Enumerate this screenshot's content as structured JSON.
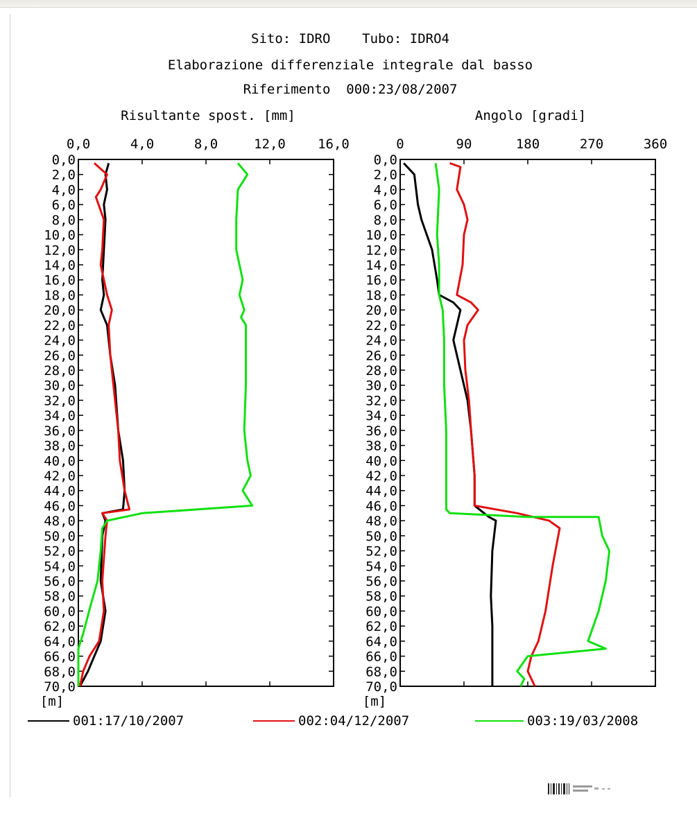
{
  "title_lines": [
    "Sito: IDRO    Tubo: IDRO4",
    "Elaborazione differenziale integrale dal basso",
    "Riferimento  000:23/08/2007"
  ],
  "depth_unit": "[m]",
  "legend": [
    {
      "label": "001:17/10/2007",
      "color": "#000000"
    },
    {
      "label": "002:04/12/2007",
      "color": "#e01010"
    },
    {
      "label": "003:19/03/2008",
      "color": "#10e010"
    }
  ],
  "chart_data": [
    {
      "type": "line",
      "title": "Risultante spost. [mm]",
      "xlabel": "Risultante spost. [mm]",
      "ylabel": "[m]",
      "xlim": [
        0,
        16
      ],
      "ylim": [
        70,
        0
      ],
      "x_ticks": [
        "0,0",
        "4,0",
        "8,0",
        "12,0",
        "16,0"
      ],
      "y_ticks": [
        "0,0",
        "2,0",
        "4,0",
        "6,0",
        "8,0",
        "10,0",
        "12,0",
        "14,0",
        "16,0",
        "18,0",
        "20,0",
        "22,0",
        "24,0",
        "26,0",
        "28,0",
        "30,0",
        "32,0",
        "34,0",
        "36,0",
        "38,0",
        "40,0",
        "42,0",
        "44,0",
        "46,0",
        "48,0",
        "50,0",
        "52,0",
        "54,0",
        "56,0",
        "58,0",
        "60,0",
        "62,0",
        "64,0",
        "66,0",
        "68,0",
        "70,0"
      ],
      "grid": false,
      "series": [
        {
          "name": "001:17/10/2007",
          "color": "#000000",
          "points": [
            [
              1.9,
              0.5
            ],
            [
              1.7,
              2
            ],
            [
              1.8,
              4
            ],
            [
              1.6,
              6
            ],
            [
              1.7,
              8
            ],
            [
              1.6,
              12
            ],
            [
              1.5,
              16
            ],
            [
              1.6,
              18
            ],
            [
              1.4,
              20
            ],
            [
              1.8,
              22
            ],
            [
              2.0,
              26
            ],
            [
              2.3,
              30
            ],
            [
              2.5,
              36
            ],
            [
              2.8,
              40
            ],
            [
              2.9,
              44
            ],
            [
              2.8,
              46.5
            ],
            [
              1.5,
              47
            ],
            [
              1.7,
              48
            ],
            [
              1.5,
              50
            ],
            [
              1.4,
              56
            ],
            [
              1.7,
              60
            ],
            [
              1.4,
              64
            ],
            [
              1.0,
              66
            ],
            [
              0.6,
              68
            ],
            [
              0.1,
              70
            ]
          ]
        },
        {
          "name": "002:04/12/2007",
          "color": "#e01010",
          "points": [
            [
              1.0,
              0.5
            ],
            [
              1.8,
              2
            ],
            [
              1.4,
              4
            ],
            [
              1.1,
              5
            ],
            [
              1.6,
              8
            ],
            [
              1.5,
              12
            ],
            [
              1.4,
              14
            ],
            [
              1.6,
              16
            ],
            [
              1.8,
              18
            ],
            [
              2.1,
              20
            ],
            [
              1.9,
              22
            ],
            [
              2.0,
              26
            ],
            [
              2.2,
              30
            ],
            [
              2.5,
              36
            ],
            [
              2.6,
              40
            ],
            [
              2.9,
              44
            ],
            [
              3.2,
              46.5
            ],
            [
              1.5,
              47
            ],
            [
              1.8,
              48
            ],
            [
              1.7,
              50
            ],
            [
              1.5,
              56
            ],
            [
              1.6,
              60
            ],
            [
              1.3,
              64
            ],
            [
              0.7,
              66
            ],
            [
              0.3,
              68
            ],
            [
              0.1,
              70
            ]
          ]
        },
        {
          "name": "003:19/03/2008",
          "color": "#10e010",
          "points": [
            [
              10.0,
              0.5
            ],
            [
              10.6,
              2
            ],
            [
              10.0,
              4
            ],
            [
              9.9,
              8
            ],
            [
              9.9,
              12
            ],
            [
              10.3,
              16
            ],
            [
              10.1,
              18
            ],
            [
              10.4,
              20
            ],
            [
              10.2,
              21
            ],
            [
              10.5,
              22
            ],
            [
              10.5,
              30
            ],
            [
              10.4,
              36
            ],
            [
              10.6,
              40
            ],
            [
              10.8,
              42
            ],
            [
              10.3,
              44
            ],
            [
              10.9,
              46
            ],
            [
              4.0,
              47
            ],
            [
              1.8,
              48
            ],
            [
              1.5,
              49
            ],
            [
              1.4,
              52
            ],
            [
              1.2,
              56
            ],
            [
              0.8,
              59
            ],
            [
              0.3,
              63
            ],
            [
              0.0,
              65
            ],
            [
              0.0,
              68
            ],
            [
              0.0,
              70
            ]
          ]
        }
      ]
    },
    {
      "type": "line",
      "title": "Angolo [gradi]",
      "xlabel": "Angolo [gradi]",
      "ylabel": "[m]",
      "xlim": [
        0,
        360
      ],
      "ylim": [
        70,
        0
      ],
      "x_ticks": [
        "0",
        "90",
        "180",
        "270",
        "360"
      ],
      "y_ticks": [
        "0,0",
        "2,0",
        "4,0",
        "6,0",
        "8,0",
        "10,0",
        "12,0",
        "14,0",
        "16,0",
        "18,0",
        "20,0",
        "22,0",
        "24,0",
        "26,0",
        "28,0",
        "30,0",
        "32,0",
        "34,0",
        "36,0",
        "38,0",
        "40,0",
        "42,0",
        "44,0",
        "46,0",
        "48,0",
        "50,0",
        "52,0",
        "54,0",
        "56,0",
        "58,0",
        "60,0",
        "62,0",
        "64,0",
        "66,0",
        "68,0",
        "70,0"
      ],
      "grid": false,
      "series": [
        {
          "name": "001:17/10/2007",
          "color": "#000000",
          "points": [
            [
              5,
              0.5
            ],
            [
              20,
              2
            ],
            [
              25,
              6
            ],
            [
              30,
              8
            ],
            [
              45,
              12
            ],
            [
              52,
              16
            ],
            [
              55,
              18
            ],
            [
              75,
              19
            ],
            [
              85,
              20
            ],
            [
              80,
              22
            ],
            [
              75,
              24
            ],
            [
              85,
              28
            ],
            [
              95,
              32
            ],
            [
              100,
              36
            ],
            [
              105,
              42
            ],
            [
              105,
              46
            ],
            [
              125,
              47.5
            ],
            [
              135,
              48
            ],
            [
              130,
              52
            ],
            [
              128,
              58
            ],
            [
              130,
              62
            ],
            [
              130,
              68
            ],
            [
              130,
              70
            ]
          ]
        },
        {
          "name": "002:04/12/2007",
          "color": "#e01010",
          "points": [
            [
              70,
              0.5
            ],
            [
              85,
              1
            ],
            [
              80,
              4
            ],
            [
              90,
              6
            ],
            [
              95,
              8
            ],
            [
              90,
              10
            ],
            [
              88,
              14
            ],
            [
              80,
              18
            ],
            [
              100,
              19
            ],
            [
              110,
              20
            ],
            [
              95,
              22
            ],
            [
              90,
              24
            ],
            [
              92,
              28
            ],
            [
              97,
              32
            ],
            [
              100,
              36
            ],
            [
              105,
              42
            ],
            [
              105,
              46
            ],
            [
              165,
              47
            ],
            [
              210,
              48
            ],
            [
              225,
              49
            ],
            [
              215,
              54
            ],
            [
              205,
              60
            ],
            [
              195,
              64
            ],
            [
              185,
              66
            ],
            [
              180,
              68
            ],
            [
              190,
              70
            ]
          ]
        },
        {
          "name": "003:19/03/2008",
          "color": "#10e010",
          "points": [
            [
              50,
              0.5
            ],
            [
              55,
              4
            ],
            [
              52,
              10
            ],
            [
              55,
              14
            ],
            [
              55,
              18
            ],
            [
              60,
              20
            ],
            [
              62,
              24
            ],
            [
              62,
              30
            ],
            [
              65,
              36
            ],
            [
              65,
              42
            ],
            [
              65,
              46.5
            ],
            [
              70,
              47
            ],
            [
              180,
              47.5
            ],
            [
              280,
              47.5
            ],
            [
              285,
              50
            ],
            [
              295,
              52
            ],
            [
              290,
              56
            ],
            [
              280,
              60
            ],
            [
              265,
              64
            ],
            [
              290,
              65
            ],
            [
              180,
              66
            ],
            [
              165,
              68
            ],
            [
              175,
              69
            ],
            [
              170,
              70
            ]
          ]
        }
      ]
    }
  ]
}
